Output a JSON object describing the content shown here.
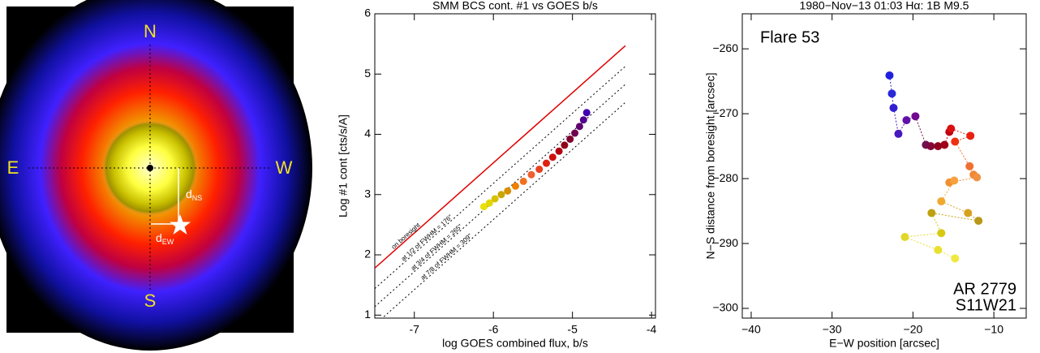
{
  "diagram": {
    "north": "N",
    "south": "S",
    "east": "E",
    "west": "W",
    "d_ns": {
      "main": "d",
      "sub": "NS"
    },
    "d_ew": {
      "main": "d",
      "sub": "EW"
    }
  },
  "chart_data": [
    {
      "type": "line",
      "title": "SMM BCS cont. #1 vs GOES b/s",
      "xlabel": "log GOES combined flux, b/s",
      "ylabel": "Log #1 cont [cts/s/A]",
      "xlim": [
        -7.5,
        -3.95
      ],
      "ylim": [
        0.95,
        6
      ],
      "xticks": [
        -7,
        -6,
        -5,
        -4
      ],
      "yticks": [
        1,
        2,
        3,
        4,
        5,
        6
      ],
      "series": [
        {
          "name": "on boresight",
          "color": "#e00000",
          "style": "solid",
          "x": [
            -7.5,
            -4.33
          ],
          "values": [
            1.78,
            5.47
          ]
        },
        {
          "name": "at 1/2 of FWHM = 176\"",
          "color": "#000000",
          "style": "dotted",
          "x": [
            -7.5,
            -4.33
          ],
          "values": [
            1.44,
            5.13
          ]
        },
        {
          "name": "at 3/4 of FWHM = 265\"",
          "color": "#000000",
          "style": "dotted",
          "x": [
            -7.5,
            -4.33
          ],
          "values": [
            1.14,
            4.83
          ]
        },
        {
          "name": "at 7/8 of FWHM = 309\"",
          "color": "#000000",
          "style": "dotted",
          "x": [
            -7.5,
            -4.33
          ],
          "values": [
            0.84,
            4.53
          ]
        }
      ],
      "points": {
        "x": [
          -6.12,
          -6.05,
          -5.98,
          -5.9,
          -5.82,
          -5.72,
          -5.62,
          -5.52,
          -5.42,
          -5.33,
          -5.25,
          -5.17,
          -5.1,
          -5.03,
          -4.97,
          -4.91,
          -4.86,
          -4.82
        ],
        "values": [
          2.8,
          2.86,
          2.93,
          3.0,
          3.06,
          3.14,
          3.22,
          3.33,
          3.42,
          3.52,
          3.62,
          3.72,
          3.82,
          3.92,
          4.02,
          4.13,
          4.24,
          4.36
        ],
        "colors": [
          "#e8e000",
          "#e0d800",
          "#d8c000",
          "#c8a800",
          "#d89000",
          "#f08000",
          "#f07020",
          "#f06030",
          "#e84020",
          "#e02010",
          "#d01010",
          "#b00010",
          "#900018",
          "#800030",
          "#700050",
          "#600070",
          "#500090",
          "#4000b0"
        ]
      }
    },
    {
      "type": "scatter",
      "title": "1980−Nov−13 01:03    Hα: 1B M9.5",
      "xlabel": "E−W position [arcsec]",
      "ylabel": "N−S distance from boresight [arcsec]",
      "annotations": [
        "Flare  53",
        "AR 2779",
        "S11W21"
      ],
      "xlim": [
        -41.1,
        -6
      ],
      "ylim": [
        -301.5,
        -254.6
      ],
      "xticks": [
        {
          "value": -40,
          "label": "−40"
        },
        {
          "value": -30,
          "label": "−30"
        },
        {
          "value": -20,
          "label": "−20"
        },
        {
          "value": -10,
          "label": "−10"
        }
      ],
      "yticks": [
        {
          "value": -260,
          "label": "−260"
        },
        {
          "value": -270,
          "label": "−270"
        },
        {
          "value": -280,
          "label": "−280"
        },
        {
          "value": -290,
          "label": "−290"
        },
        {
          "value": -300,
          "label": "−300"
        }
      ],
      "connect": true,
      "x": [
        -22.9,
        -22.6,
        -22.4,
        -21.8,
        -20.8,
        -19.7,
        -18.4,
        -17.8,
        -16.9,
        -16.1,
        -15.5,
        -15.3,
        -12.9,
        -14.8,
        -13.0,
        -12.5,
        -12.1,
        -15.5,
        -14.9,
        -16.5,
        -13.2,
        -11.9,
        -17.7,
        -16.5,
        -21.0,
        -16.9,
        -14.8
      ],
      "values": [
        -264.1,
        -266.9,
        -269.1,
        -273.1,
        -271.0,
        -270.4,
        -274.8,
        -275.0,
        -275.0,
        -274.8,
        -272.8,
        -272.3,
        -273.4,
        -274.3,
        -278.1,
        -279.4,
        -279.8,
        -280.6,
        -280.3,
        -283.5,
        -285.3,
        -286.5,
        -285.3,
        -288.4,
        -289.0,
        -291.0,
        -292.3
      ],
      "colors": [
        "#2020e0",
        "#2828d8",
        "#3020d0",
        "#4818c0",
        "#6010a8",
        "#700890",
        "#701050",
        "#800838",
        "#900020",
        "#a00018",
        "#c00010",
        "#d81010",
        "#e82010",
        "#f03010",
        "#f07030",
        "#f08838",
        "#f09040",
        "#f09030",
        "#f8a040",
        "#f0a830",
        "#d8a020",
        "#b89818",
        "#c0a010",
        "#d8c810",
        "#e0d828",
        "#e8e030",
        "#f0e840"
      ]
    }
  ]
}
